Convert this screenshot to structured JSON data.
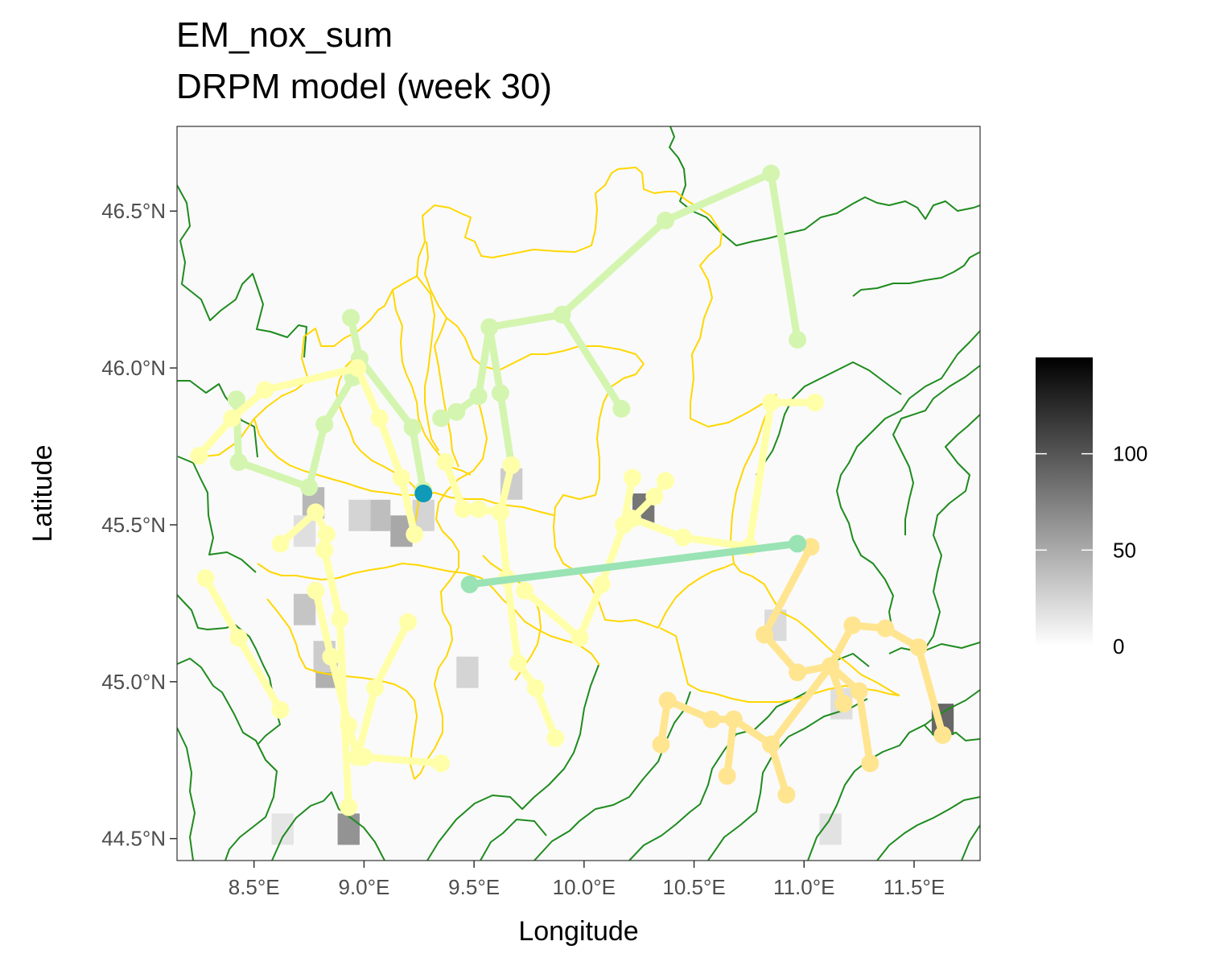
{
  "title": {
    "line1": "EM_nox_sum",
    "line2": "DRPM model (week 30)"
  },
  "axes": {
    "x": {
      "label": "Longitude",
      "ticks": [
        {
          "value": 8.5,
          "label": "8.5°E"
        },
        {
          "value": 9.0,
          "label": "9.0°E"
        },
        {
          "value": 9.5,
          "label": "9.5°E"
        },
        {
          "value": 10.0,
          "label": "10.0°E"
        },
        {
          "value": 10.5,
          "label": "10.5°E"
        },
        {
          "value": 11.0,
          "label": "11.0°E"
        },
        {
          "value": 11.5,
          "label": "11.5°E"
        }
      ],
      "range": [
        8.15,
        11.8
      ]
    },
    "y": {
      "label": "Latitude",
      "ticks": [
        {
          "value": 44.5,
          "label": "44.5°N"
        },
        {
          "value": 45.0,
          "label": "45.0°N"
        },
        {
          "value": 45.5,
          "label": "45.5°N"
        },
        {
          "value": 46.0,
          "label": "46.0°N"
        },
        {
          "value": 46.5,
          "label": "46.5°N"
        }
      ],
      "range": [
        44.43,
        46.77
      ]
    }
  },
  "legend": {
    "type": "continuous",
    "palette": [
      "#ffffff",
      "#000000"
    ],
    "range": [
      0,
      150
    ],
    "ticks": [
      {
        "value": 0,
        "label": "0"
      },
      {
        "value": 50,
        "label": "50"
      },
      {
        "value": 100,
        "label": "100"
      }
    ]
  },
  "colors": {
    "region_border": "#ffd700",
    "country_border": "#1e8b1e",
    "cluster_1": "#d4f5b0",
    "cluster_2": "#ffffaa",
    "cluster_3": "#ffe590",
    "cluster_4": "#9ae3b4",
    "highlight": "#0e9ab8"
  },
  "chart_data": {
    "type": "map",
    "grid_cells": [
      {
        "lon": 10.27,
        "lat": 45.55,
        "value": 95
      },
      {
        "lon": 8.93,
        "lat": 44.53,
        "value": 75
      },
      {
        "lon": 11.63,
        "lat": 44.88,
        "value": 105
      },
      {
        "lon": 9.17,
        "lat": 45.48,
        "value": 60
      },
      {
        "lon": 9.07,
        "lat": 45.53,
        "value": 45
      },
      {
        "lon": 8.83,
        "lat": 45.03,
        "value": 55
      },
      {
        "lon": 8.82,
        "lat": 45.08,
        "value": 35
      },
      {
        "lon": 8.77,
        "lat": 45.57,
        "value": 50
      },
      {
        "lon": 8.73,
        "lat": 45.23,
        "value": 40
      },
      {
        "lon": 9.47,
        "lat": 45.03,
        "value": 30
      },
      {
        "lon": 9.67,
        "lat": 45.63,
        "value": 35
      },
      {
        "lon": 8.98,
        "lat": 45.53,
        "value": 30
      },
      {
        "lon": 9.27,
        "lat": 45.53,
        "value": 30
      },
      {
        "lon": 11.12,
        "lat": 44.53,
        "value": 20
      },
      {
        "lon": 10.87,
        "lat": 45.18,
        "value": 25
      },
      {
        "lon": 11.17,
        "lat": 44.93,
        "value": 22
      },
      {
        "lon": 8.63,
        "lat": 44.53,
        "value": 18
      },
      {
        "lon": 8.73,
        "lat": 45.48,
        "value": 22
      }
    ],
    "clusters": [
      {
        "color": "cluster_1",
        "paths": [
          [
            [
              8.42,
              45.9
            ],
            [
              8.43,
              45.7
            ],
            [
              8.75,
              45.62
            ],
            [
              8.82,
              45.82
            ],
            [
              8.95,
              45.97
            ],
            [
              8.98,
              46.03
            ],
            [
              9.22,
              45.81
            ],
            [
              9.27,
              45.61
            ]
          ],
          [
            [
              8.94,
              46.16
            ],
            [
              8.98,
              46.03
            ]
          ],
          [
            [
              9.35,
              45.84
            ],
            [
              9.42,
              45.86
            ],
            [
              9.52,
              45.91
            ],
            [
              9.57,
              46.13
            ],
            [
              9.9,
              46.17
            ],
            [
              10.37,
              46.47
            ],
            [
              10.85,
              46.62
            ],
            [
              10.97,
              46.09
            ]
          ],
          [
            [
              9.9,
              46.17
            ],
            [
              10.17,
              45.87
            ]
          ],
          [
            [
              9.57,
              46.13
            ],
            [
              9.62,
              45.92
            ],
            [
              9.67,
              45.69
            ]
          ]
        ]
      },
      {
        "color": "cluster_2",
        "paths": [
          [
            [
              8.25,
              45.72
            ],
            [
              8.4,
              45.84
            ],
            [
              8.55,
              45.93
            ],
            [
              8.97,
              46.0
            ],
            [
              9.07,
              45.84
            ],
            [
              9.17,
              45.65
            ],
            [
              9.23,
              45.47
            ]
          ],
          [
            [
              8.62,
              45.44
            ],
            [
              8.78,
              45.54
            ],
            [
              8.83,
              45.47
            ]
          ],
          [
            [
              8.28,
              45.33
            ],
            [
              8.43,
              45.14
            ],
            [
              8.62,
              44.91
            ]
          ],
          [
            [
              8.78,
              45.29
            ],
            [
              8.85,
              45.08
            ],
            [
              8.93,
              44.86
            ],
            [
              8.97,
              44.76
            ],
            [
              9.05,
              44.98
            ],
            [
              9.2,
              45.19
            ]
          ],
          [
            [
              9.0,
              44.76
            ],
            [
              9.35,
              44.74
            ]
          ],
          [
            [
              8.82,
              45.42
            ],
            [
              8.89,
              45.2
            ],
            [
              8.93,
              44.6
            ]
          ],
          [
            [
              9.37,
              45.7
            ],
            [
              9.45,
              45.55
            ],
            [
              9.52,
              45.55
            ],
            [
              9.62,
              45.54
            ],
            [
              9.65,
              45.33
            ],
            [
              9.7,
              45.06
            ],
            [
              9.78,
              44.98
            ],
            [
              9.87,
              44.82
            ]
          ],
          [
            [
              9.62,
              45.54
            ],
            [
              9.67,
              45.69
            ]
          ],
          [
            [
              9.73,
              45.29
            ],
            [
              9.98,
              45.14
            ],
            [
              10.08,
              45.31
            ],
            [
              10.18,
              45.5
            ],
            [
              10.22,
              45.65
            ]
          ],
          [
            [
              10.22,
              45.52
            ],
            [
              10.32,
              45.59
            ],
            [
              10.37,
              45.64
            ]
          ],
          [
            [
              10.22,
              45.52
            ],
            [
              10.45,
              45.46
            ],
            [
              10.75,
              45.43
            ],
            [
              10.85,
              45.89
            ],
            [
              11.05,
              45.89
            ]
          ]
        ]
      },
      {
        "color": "cluster_3",
        "paths": [
          [
            [
              11.03,
              45.43
            ],
            [
              10.82,
              45.15
            ],
            [
              10.97,
              45.03
            ],
            [
              11.12,
              45.05
            ],
            [
              11.22,
              45.18
            ],
            [
              11.37,
              45.17
            ],
            [
              11.52,
              45.11
            ],
            [
              11.63,
              44.83
            ]
          ],
          [
            [
              10.35,
              44.8
            ],
            [
              10.38,
              44.94
            ],
            [
              10.58,
              44.88
            ],
            [
              10.68,
              44.88
            ],
            [
              10.85,
              44.8
            ],
            [
              10.92,
              44.64
            ]
          ],
          [
            [
              10.68,
              44.88
            ],
            [
              10.65,
              44.7
            ]
          ],
          [
            [
              10.85,
              44.8
            ],
            [
              11.12,
              45.05
            ],
            [
              11.25,
              44.97
            ],
            [
              11.3,
              44.74
            ]
          ],
          [
            [
              11.12,
              45.05
            ],
            [
              11.18,
              44.93
            ]
          ]
        ]
      },
      {
        "color": "cluster_4",
        "paths": [
          [
            [
              9.48,
              45.31
            ],
            [
              10.97,
              45.44
            ]
          ]
        ]
      }
    ],
    "highlight_point": {
      "lon": 9.27,
      "lat": 45.6
    }
  }
}
